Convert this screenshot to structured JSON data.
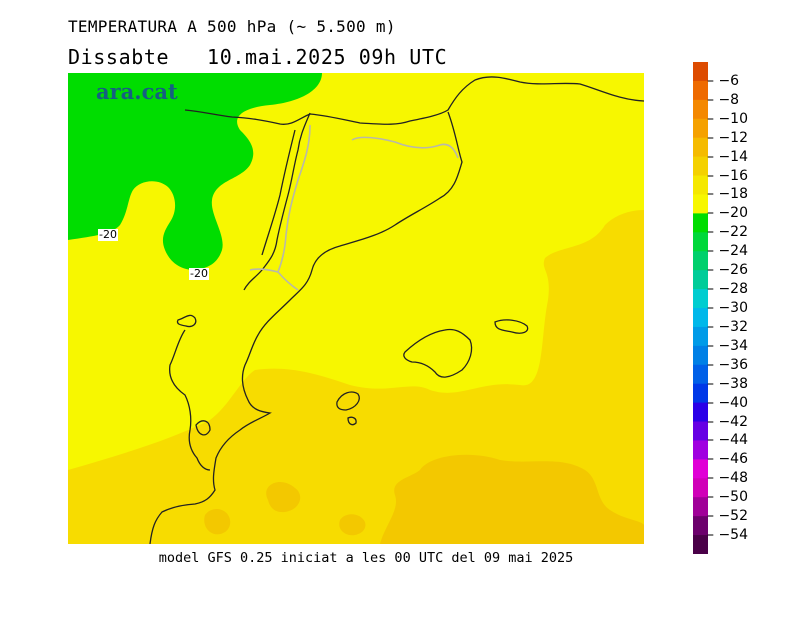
{
  "header": {
    "title": "TEMPERATURA A 500 hPa (~ 5.500 m)",
    "subtitle": "Dissabte   10.mai.2025 09h UTC"
  },
  "footer": {
    "model_note": "model GFS 0.25 iniciat a les 00 UTC del 09 mai 2025"
  },
  "map": {
    "logo": "ara.cat",
    "contour_labels": [
      "-20",
      "-20"
    ],
    "region_colors": {
      "green_cold": "#00dd00",
      "yellow": "#f7f700",
      "gold": "#f7dc00",
      "dark_gold": "#f3c800"
    }
  },
  "colorbar": {
    "labels": [
      "-6",
      "-8",
      "-10",
      "-12",
      "-14",
      "-16",
      "-18",
      "-20",
      "-22",
      "-24",
      "-26",
      "-28",
      "-30",
      "-32",
      "-34",
      "-36",
      "-38",
      "-40",
      "-42",
      "-44",
      "-46",
      "-48",
      "-50",
      "-52",
      "-54"
    ],
    "colors": [
      "#dd4b00",
      "#ee6a00",
      "#f48800",
      "#f5a100",
      "#f5bb00",
      "#f4d100",
      "#f5e800",
      "#f7f700",
      "#00dd00",
      "#00d83a",
      "#00d06c",
      "#00cc99",
      "#00cdd0",
      "#00b8ea",
      "#009be8",
      "#0080e6",
      "#0060e8",
      "#0038e8",
      "#2a00e8",
      "#6600e4",
      "#a000e0",
      "#e000d6",
      "#d000b8",
      "#a00098",
      "#6c006c",
      "#4a0048"
    ]
  }
}
